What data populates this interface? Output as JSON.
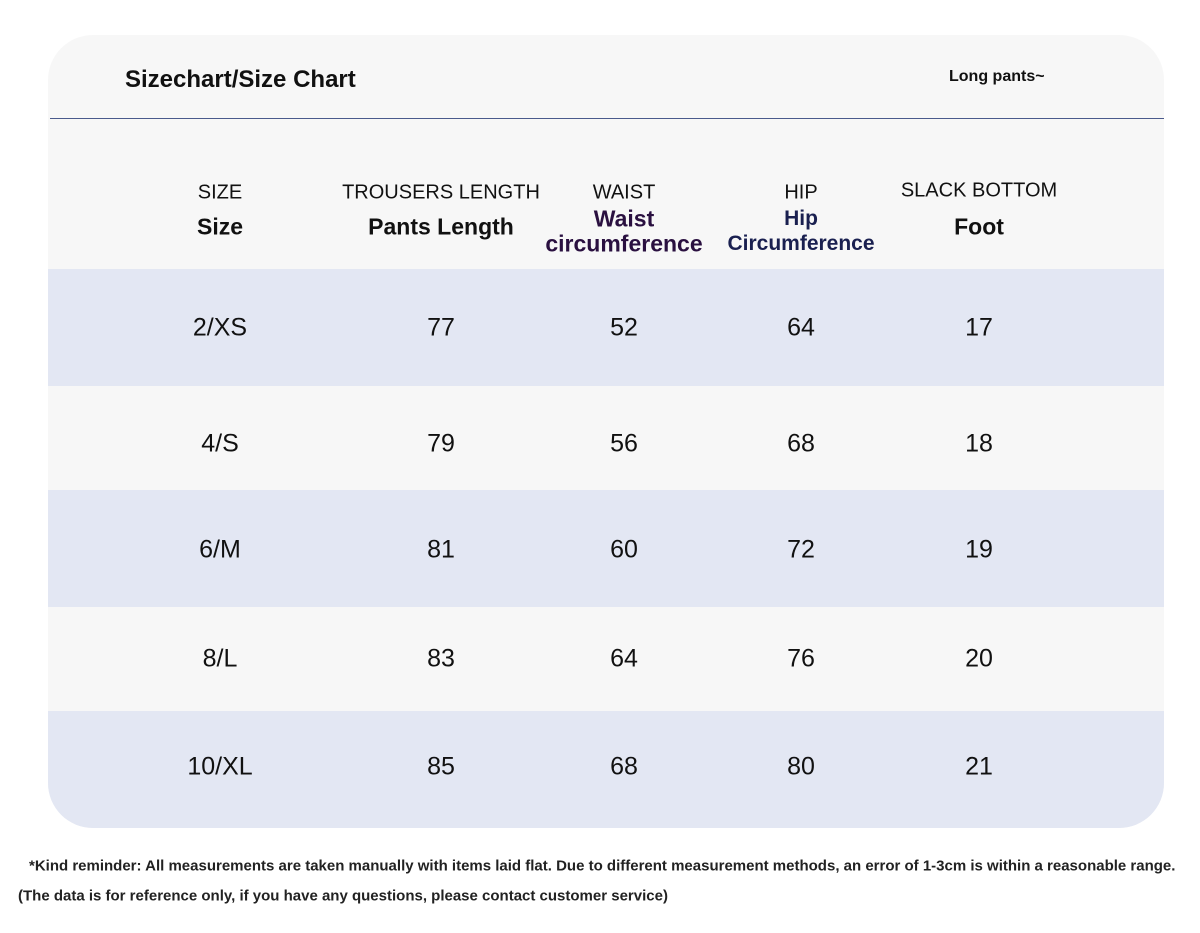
{
  "header": {
    "title": "Sizechart/Size Chart",
    "note": "Long pants~"
  },
  "table": {
    "columns": [
      {
        "label": "SIZE",
        "sublabel": [
          "Size"
        ]
      },
      {
        "label": "TROUSERS LENGTH",
        "sublabel": [
          "Pants Length"
        ]
      },
      {
        "label": "WAIST",
        "sublabel": [
          "Waist",
          "circumference"
        ]
      },
      {
        "label": "HIP",
        "sublabel": [
          "Hip",
          "Circumference"
        ]
      },
      {
        "label": "SLACK BOTTOM",
        "sublabel": [
          "Foot"
        ]
      }
    ],
    "rows": [
      [
        "2/XS",
        77,
        52,
        64,
        17
      ],
      [
        "4/S",
        79,
        56,
        68,
        18
      ],
      [
        "6/M",
        81,
        60,
        72,
        19
      ],
      [
        "8/L",
        83,
        64,
        76,
        20
      ],
      [
        "10/XL",
        85,
        68,
        80,
        21
      ]
    ]
  },
  "footer": {
    "reminder": "*Kind reminder: All measurements are taken manually with items laid flat. Due to different measurement methods, an error of 1-3cm is within a reasonable range.",
    "disclaimer": "(The data is for reference only, if you have any questions, please contact customer service)"
  }
}
